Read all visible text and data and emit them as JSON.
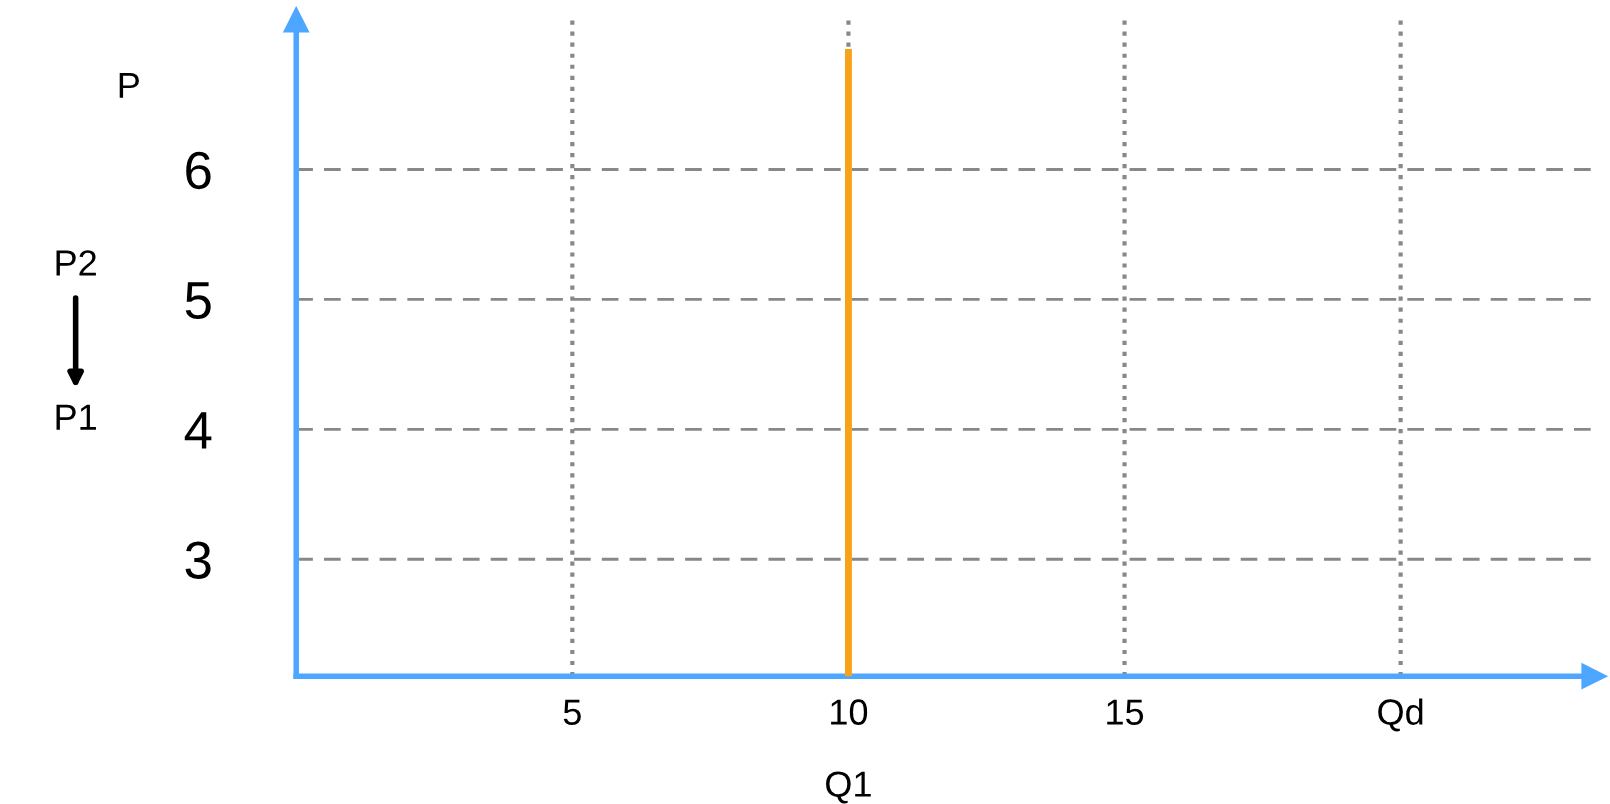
{
  "chart_data": {
    "type": "line",
    "ylabel": "P",
    "series": [
      {
        "color": "#f7a21b",
        "x": [
          10,
          10
        ],
        "values": [
          2.1,
          6.9
        ]
      }
    ],
    "xlim": [
      0,
      23.5
    ],
    "ylim": [
      2.1,
      7.15
    ],
    "xticks": [
      5,
      10,
      15,
      {
        "value": 20,
        "label": "Qd"
      }
    ],
    "yticks": [
      3,
      4,
      5,
      6
    ],
    "grid": true,
    "marker": "none",
    "line_style": "solid",
    "annotations": [
      {
        "text": "Q1",
        "x": 10,
        "y": 2.1
      },
      "P2",
      "P1"
    ]
  }
}
